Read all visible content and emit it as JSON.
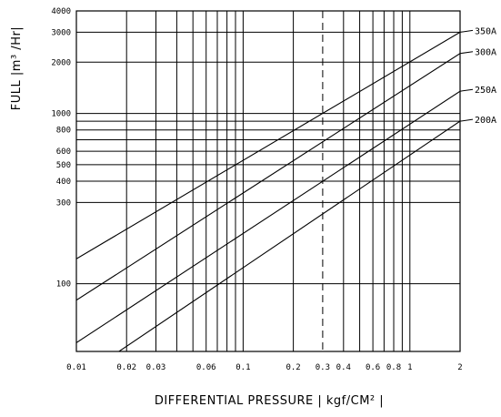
{
  "chart_data": {
    "type": "line",
    "xlabel": "DIFFERENTIAL PRESSURE  | kgf/CM² |",
    "ylabel": "FULL  |m³ /Hr|",
    "x_scale": "log",
    "y_scale": "log",
    "xlim": [
      0.01,
      2
    ],
    "ylim": [
      40,
      4000
    ],
    "x_ticks": [
      {
        "value": 0.01,
        "label": "0.01"
      },
      {
        "value": 0.02,
        "label": "0.02"
      },
      {
        "value": 0.03,
        "label": "0.03"
      },
      {
        "value": 0.06,
        "label": "0.06"
      },
      {
        "value": 0.1,
        "label": "0.1"
      },
      {
        "value": 0.2,
        "label": "0.2"
      },
      {
        "value": 0.3,
        "label": "0.3"
      },
      {
        "value": 0.4,
        "label": "0.4"
      },
      {
        "value": 0.6,
        "label": "0.6"
      },
      {
        "value": 0.8,
        "label": "0.8"
      },
      {
        "value": 1,
        "label": "1"
      },
      {
        "value": 2,
        "label": "2"
      }
    ],
    "x_gridlines": [
      0.01,
      0.02,
      0.03,
      0.04,
      0.05,
      0.06,
      0.07,
      0.08,
      0.09,
      0.1,
      0.2,
      0.3,
      0.4,
      0.5,
      0.6,
      0.7,
      0.8,
      0.9,
      1,
      2
    ],
    "x_dashed_line": 0.3,
    "y_ticks": [
      {
        "value": 100,
        "label": "100"
      },
      {
        "value": 300,
        "label": "300"
      },
      {
        "value": 400,
        "label": "400"
      },
      {
        "value": 500,
        "label": "500"
      },
      {
        "value": 600,
        "label": "600"
      },
      {
        "value": 800,
        "label": "800"
      },
      {
        "value": 1000,
        "label": "1000"
      },
      {
        "value": 2000,
        "label": "2000"
      },
      {
        "value": 3000,
        "label": "3000"
      },
      {
        "value": 4000,
        "label": "4000"
      }
    ],
    "y_gridlines": [
      100,
      300,
      400,
      500,
      600,
      700,
      800,
      900,
      1000,
      2000,
      3000,
      4000
    ],
    "series": [
      {
        "name": "350A",
        "x": [
          0.01,
          2
        ],
        "y": [
          140,
          3000
        ]
      },
      {
        "name": "300A",
        "x": [
          0.01,
          2
        ],
        "y": [
          80,
          2250
        ]
      },
      {
        "name": "250A",
        "x": [
          0.01,
          2
        ],
        "y": [
          45,
          1350
        ]
      },
      {
        "name": "200A",
        "x": [
          0.018,
          2
        ],
        "y": [
          40,
          900
        ]
      }
    ],
    "grid": true,
    "legend": "right"
  }
}
